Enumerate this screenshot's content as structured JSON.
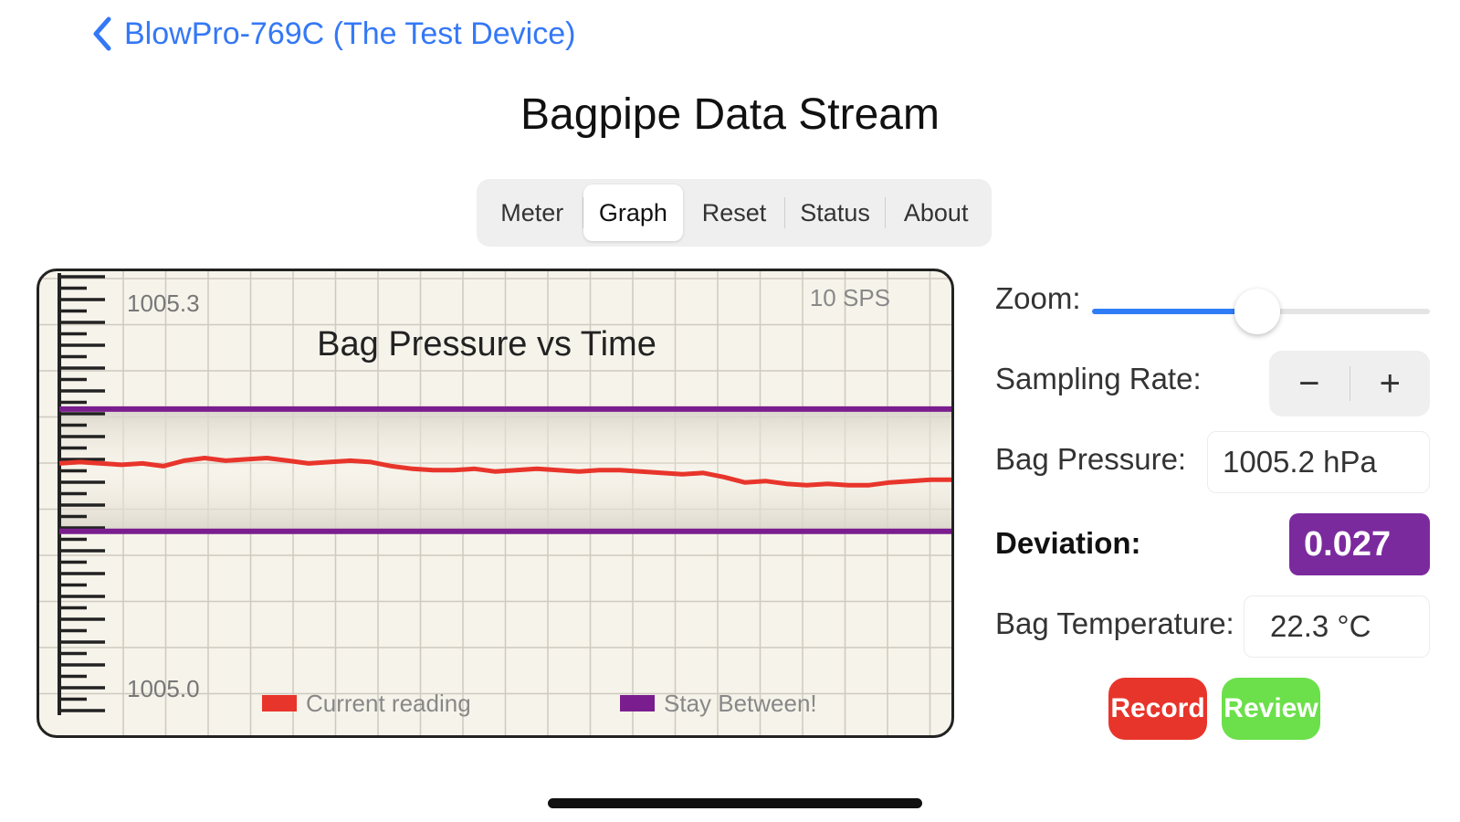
{
  "nav": {
    "back_label": "BlowPro-769C (The Test Device)"
  },
  "page_title": "Bagpipe Data Stream",
  "tabs": [
    {
      "label": "Meter",
      "selected": false
    },
    {
      "label": "Graph",
      "selected": true
    },
    {
      "label": "Reset",
      "selected": false
    },
    {
      "label": "Status",
      "selected": false
    },
    {
      "label": "About",
      "selected": false
    }
  ],
  "chart_data": {
    "type": "line",
    "title": "Bag Pressure vs Time",
    "sps_label": "10 SPS",
    "y_max_label": "1005.3",
    "y_min_label": "1005.0",
    "ylim": [
      1005.0,
      1005.3
    ],
    "legend": [
      {
        "name": "Current reading",
        "color": "#e8352b"
      },
      {
        "name": "Stay Between!",
        "color": "#7a1e8f"
      }
    ],
    "band": {
      "upper": 1005.22,
      "lower": 1005.13
    },
    "series": [
      {
        "name": "Current reading",
        "values": [
          1005.18,
          1005.181,
          1005.18,
          1005.179,
          1005.18,
          1005.178,
          1005.182,
          1005.184,
          1005.182,
          1005.183,
          1005.184,
          1005.182,
          1005.18,
          1005.181,
          1005.182,
          1005.181,
          1005.178,
          1005.176,
          1005.175,
          1005.175,
          1005.176,
          1005.174,
          1005.175,
          1005.176,
          1005.175,
          1005.174,
          1005.175,
          1005.175,
          1005.174,
          1005.173,
          1005.172,
          1005.173,
          1005.17,
          1005.166,
          1005.167,
          1005.165,
          1005.164,
          1005.165,
          1005.164,
          1005.164,
          1005.166,
          1005.167,
          1005.168,
          1005.168
        ]
      }
    ]
  },
  "controls": {
    "zoom_label": "Zoom:",
    "zoom_value": 0.49,
    "sampling_label": "Sampling Rate:",
    "minus": "−",
    "plus": "+",
    "pressure_label": "Bag Pressure:",
    "pressure_value": "1005.2 hPa",
    "deviation_label": "Deviation:",
    "deviation_value": "0.027",
    "temperature_label": "Bag Temperature:",
    "temperature_value": "22.3 °C",
    "record_label": "Record",
    "review_label": "Review"
  },
  "colors": {
    "accent": "#3478f6",
    "deviation_bg": "#7b2a9e",
    "record": "#e8352b",
    "review": "#6be04a"
  }
}
